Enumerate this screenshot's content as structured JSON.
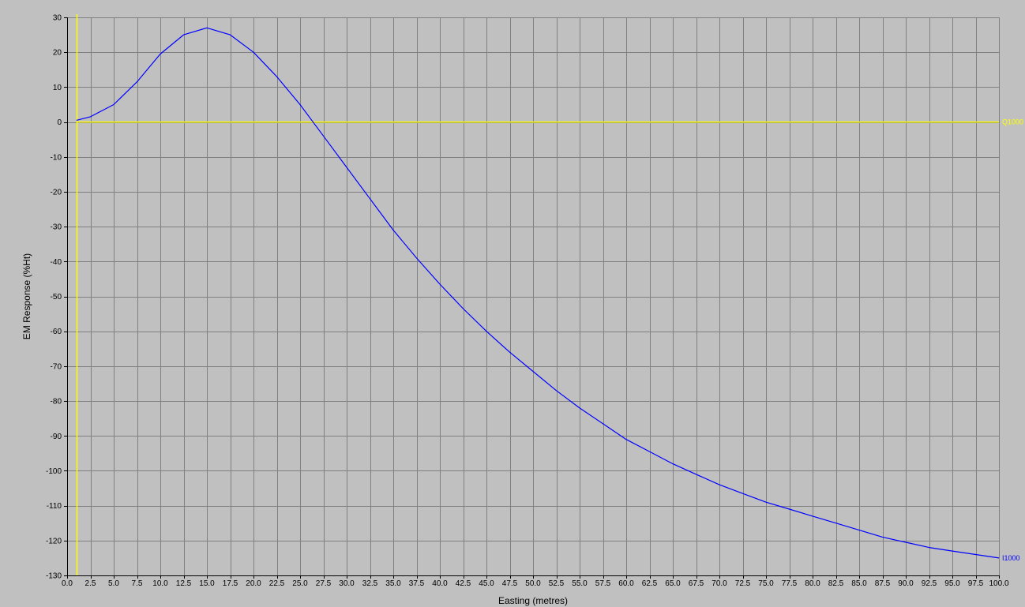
{
  "chart_data": {
    "type": "line",
    "xlabel": "Easting (metres)",
    "ylabel": "EM Response (%Ht)",
    "xlim": [
      0,
      100
    ],
    "ylim": [
      -130,
      30
    ],
    "x_ticks": [
      0.0,
      2.5,
      5.0,
      7.5,
      10.0,
      12.5,
      15.0,
      17.5,
      20.0,
      22.5,
      25.0,
      27.5,
      30.0,
      32.5,
      35.0,
      37.5,
      40.0,
      42.5,
      45.0,
      47.5,
      50.0,
      52.5,
      55.0,
      57.5,
      60.0,
      62.5,
      65.0,
      67.5,
      70.0,
      72.5,
      75.0,
      77.5,
      80.0,
      82.5,
      85.0,
      87.5,
      90.0,
      92.5,
      95.0,
      97.5,
      100.0
    ],
    "x_tick_labels": [
      "0.0",
      "2.5",
      "5.0",
      "7.5",
      "10.0",
      "12.5",
      "15.0",
      "17.5",
      "20.0",
      "22.5",
      "25.0",
      "27.5",
      "30.0",
      "32.5",
      "35.0",
      "37.5",
      "40.0",
      "42.5",
      "45.0",
      "47.5",
      "50.0",
      "52.5",
      "55.0",
      "57.5",
      "60.0",
      "62.5",
      "65.0",
      "67.5",
      "70.0",
      "72.5",
      "75.0",
      "77.5",
      "80.0",
      "82.5",
      "85.0",
      "87.5",
      "90.0",
      "92.5",
      "95.0",
      "97.5",
      "100.0"
    ],
    "y_ticks": [
      30,
      20,
      10,
      0,
      -10,
      -20,
      -30,
      -40,
      -50,
      -60,
      -70,
      -80,
      -90,
      -100,
      -110,
      -120,
      -130
    ],
    "y_tick_labels": [
      "30",
      "20",
      "10",
      "0",
      "-10",
      "-20",
      "-30",
      "-40",
      "-50",
      "-60",
      "-70",
      "-80",
      "-90",
      "-100",
      "-110",
      "-120",
      "-130"
    ],
    "grid": true,
    "reference_lines": [
      {
        "orientation": "vertical",
        "x": 1,
        "color": "#ffff00"
      }
    ],
    "series": [
      {
        "name": "Q1000",
        "color": "#ffff00",
        "x": [
          1,
          100
        ],
        "y": [
          0,
          0
        ]
      },
      {
        "name": "I1000",
        "color": "#0000ff",
        "x": [
          1,
          2.5,
          5,
          7.5,
          10,
          12.5,
          15,
          17.5,
          20,
          22.5,
          25,
          27.5,
          30,
          32.5,
          35,
          37.5,
          40,
          42.5,
          45,
          47.5,
          50,
          52.5,
          55,
          57.5,
          60,
          62.5,
          65,
          67.5,
          70,
          72.5,
          75,
          77.5,
          80,
          82.5,
          85,
          87.5,
          90,
          92.5,
          95,
          97.5,
          100
        ],
        "y": [
          0.5,
          1.5,
          5,
          11.5,
          19.5,
          25,
          27,
          25,
          20,
          13,
          5,
          -4,
          -13,
          -22,
          -31,
          -39,
          -46.5,
          -53.5,
          -60,
          -66,
          -71.5,
          -77,
          -82,
          -86.5,
          -91,
          -94.5,
          -98,
          -101,
          -104,
          -106.5,
          -109,
          -111,
          -113,
          -115,
          -117,
          -119,
          -120.5,
          -122,
          -123,
          -124,
          -125
        ]
      }
    ]
  }
}
